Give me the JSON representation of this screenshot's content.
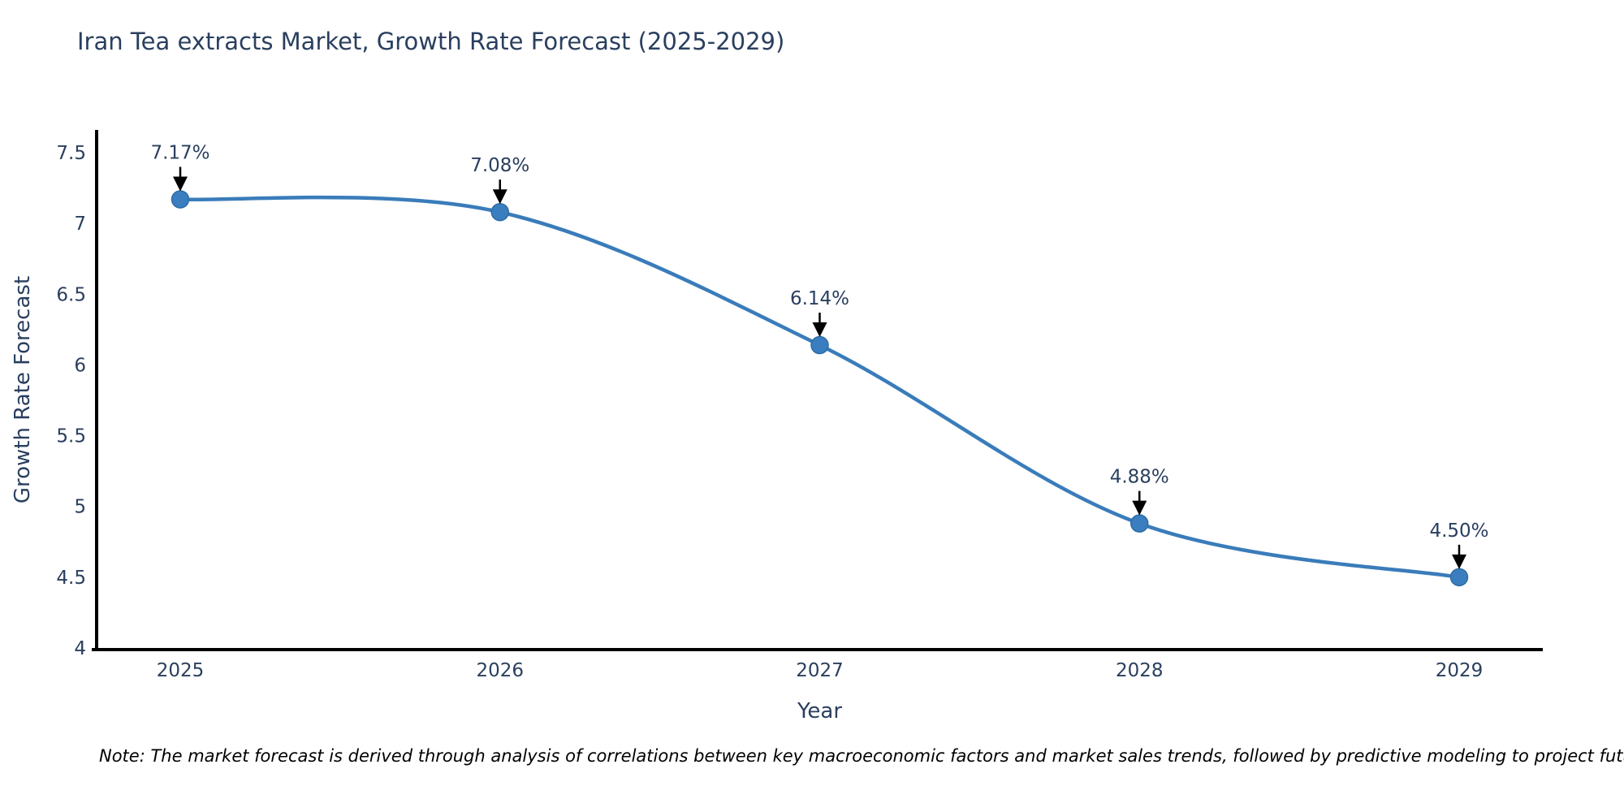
{
  "page": {
    "background": "#ffffff"
  },
  "title": "Iran Tea extracts Market, Growth Rate Forecast (2025-2029)",
  "note": "Note: The market forecast is derived through analysis of correlations between key macroeconomic factors and market sales trends, followed by predictive modeling to project future sales",
  "chart_data": {
    "type": "line",
    "title": "Iran Tea extracts Market, Growth Rate Forecast (2025-2029)",
    "x": [
      "2025",
      "2026",
      "2027",
      "2028",
      "2029"
    ],
    "series": [
      {
        "name": "Growth Rate Forecast",
        "values": [
          7.17,
          7.08,
          6.14,
          4.88,
          4.5
        ]
      }
    ],
    "point_labels": [
      "7.17%",
      "7.08%",
      "6.14%",
      "4.88%",
      "4.50%"
    ],
    "xlabel": "Year",
    "ylabel": "Growth Rate Forecast",
    "ylim": [
      4,
      7.5
    ],
    "yticks": [
      4,
      4.5,
      5,
      5.5,
      6,
      6.5,
      7,
      7.5
    ],
    "line_shape": "spline",
    "grid": false,
    "legend": false,
    "annotations": "value labels with black arrows above each point",
    "colors": {
      "line": "#3a7cba",
      "marker": "#3a7ebf",
      "marker_edge": "#2e6da4",
      "text": "#2a3f5f",
      "axis": "#000000",
      "arrow": "#000000",
      "note_text": "#000000"
    }
  }
}
